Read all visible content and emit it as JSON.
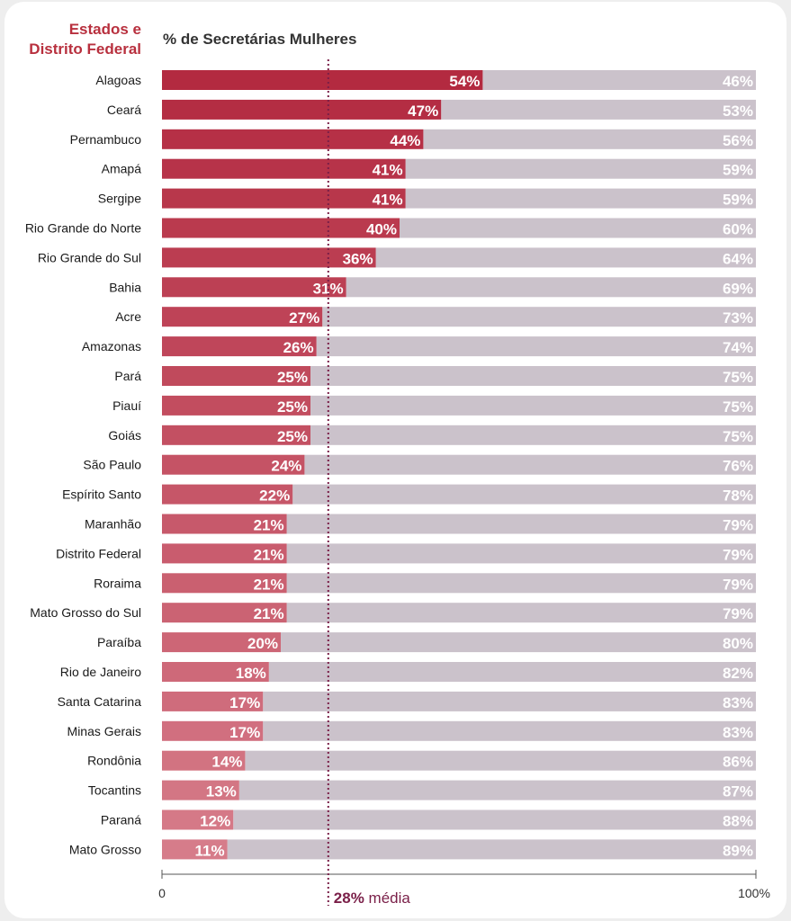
{
  "chart_data": {
    "type": "bar",
    "stacked": true,
    "orientation": "horizontal",
    "category_header": [
      "Estados e",
      "Distrito Federal"
    ],
    "title": "% de Secretárias Mulheres",
    "categories": [
      "Alagoas",
      "Ceará",
      "Pernambuco",
      "Amapá",
      "Sergipe",
      "Rio Grande do Norte",
      "Rio Grande do Sul",
      "Bahia",
      "Acre",
      "Amazonas",
      "Pará",
      "Piauí",
      "Goiás",
      "São Paulo",
      "Espírito Santo",
      "Maranhão",
      "Distrito Federal",
      "Roraima",
      "Mato Grosso do Sul",
      "Paraíba",
      "Rio de Janeiro",
      "Santa Catarina",
      "Minas Gerais",
      "Rondônia",
      "Tocantins",
      "Paraná",
      "Mato Grosso"
    ],
    "series": [
      {
        "values": [
          54,
          47,
          44,
          41,
          41,
          40,
          36,
          31,
          27,
          26,
          25,
          25,
          25,
          24,
          22,
          21,
          21,
          21,
          21,
          20,
          18,
          17,
          17,
          14,
          13,
          12,
          11
        ]
      },
      {
        "values": [
          46,
          53,
          56,
          59,
          59,
          60,
          64,
          69,
          73,
          74,
          75,
          75,
          75,
          76,
          78,
          79,
          79,
          79,
          79,
          80,
          82,
          83,
          83,
          86,
          87,
          88,
          89
        ]
      }
    ],
    "value_suffix": "%",
    "xlim": [
      0,
      100
    ],
    "x_ticks": [
      "0",
      "100%"
    ],
    "average": {
      "value": 28,
      "label": "28%",
      "text": "média"
    },
    "grid": false,
    "legend": "none",
    "colors": {
      "women_dark": "#b32a40",
      "women_light": "#d67c8a",
      "remainder": "#cbc2cb",
      "header": "#b8303e",
      "average": "#7a1f48",
      "axis": "#555555"
    }
  }
}
